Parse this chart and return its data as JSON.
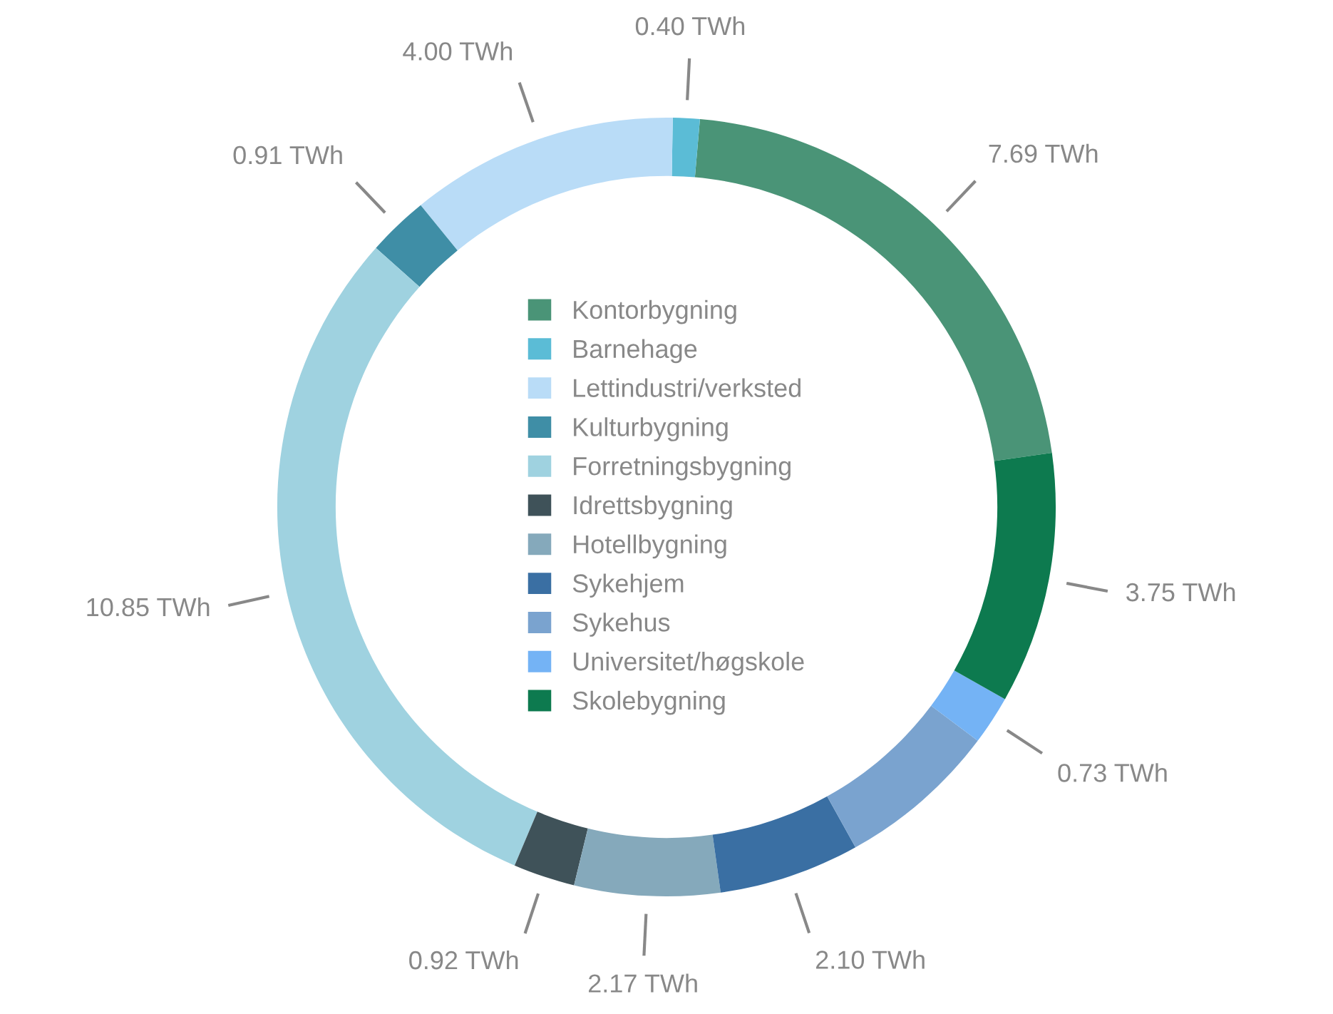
{
  "chart_data": {
    "type": "donut",
    "categories": [
      "Kontorbygning",
      "Barnehage",
      "Lettindustri/verksted",
      "Kulturbygning",
      "Forretningsbygning",
      "Idrettsbygning",
      "Hotellbygning",
      "Sykehjem",
      "Sykehus",
      "Universitet/høgskole",
      "Skolebygning"
    ],
    "values": [
      7.69,
      0.4,
      4.0,
      0.91,
      10.85,
      0.92,
      2.17,
      2.1,
      2.4,
      0.73,
      3.75
    ],
    "colors": [
      "#4a9477",
      "#5bbcd6",
      "#b9dcf7",
      "#3f8ea6",
      "#9fd2e0",
      "#3f5259",
      "#85a9bb",
      "#3a6fa3",
      "#7aa3cf",
      "#74b3f5",
      "#0d7a4f"
    ],
    "value_labels": [
      "7.69 TWh",
      "0.40 TWh",
      "4.00 TWh",
      "0.91 TWh",
      "10.85 TWh",
      "0.92 TWh",
      "2.17 TWh",
      "2.10 TWh",
      null,
      "0.73 TWh",
      "3.75 TWh"
    ],
    "legend": "center"
  }
}
